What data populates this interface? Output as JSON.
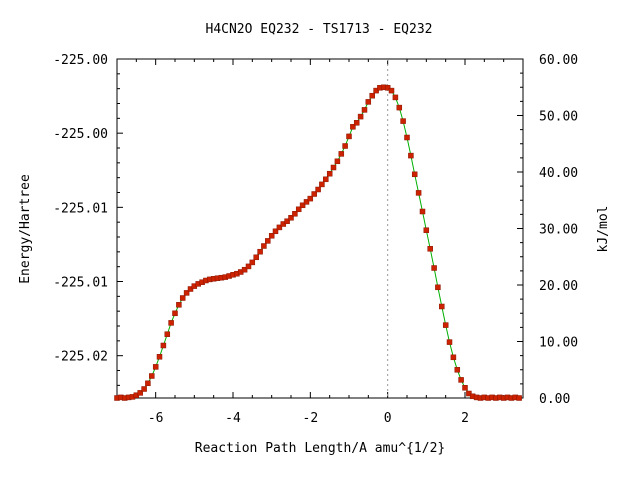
{
  "chart_data": {
    "type": "line",
    "title": "H4CN2O   EQ232 - TS1713 - EQ232",
    "xlabel": "Reaction Path Length/A amu^{1/2}",
    "ylabel": "Energy/Hartree",
    "y2label": "kJ/mol",
    "xlim": [
      -7.0,
      3.5
    ],
    "ylim": [
      0.0,
      60.0
    ],
    "x_ticks": [
      -6,
      -4,
      -2,
      0,
      2
    ],
    "x_tick_labels": [
      "-6",
      "-4",
      "-2",
      "0",
      "2"
    ],
    "y_left_tick_labels": [
      "-225.00",
      "-225.00",
      "-225.01",
      "-225.01",
      "-225.02"
    ],
    "y_right_ticks": [
      0,
      10,
      20,
      30,
      40,
      50,
      60
    ],
    "y_right_tick_labels": [
      "0.00",
      "10.00",
      "20.00",
      "30.00",
      "40.00",
      "50.00",
      "60.00"
    ],
    "reference_x": 0,
    "series": [
      {
        "color": "#00b000",
        "marker_color": "#cc2200",
        "x": [
          -7.0,
          -6.9,
          -6.8,
          -6.7,
          -6.6,
          -6.5,
          -6.4,
          -6.3,
          -6.2,
          -6.1,
          -6.0,
          -5.9,
          -5.8,
          -5.7,
          -5.6,
          -5.5,
          -5.4,
          -5.3,
          -5.2,
          -5.1,
          -5.0,
          -4.9,
          -4.8,
          -4.7,
          -4.6,
          -4.5,
          -4.4,
          -4.3,
          -4.2,
          -4.1,
          -4.0,
          -3.9,
          -3.8,
          -3.7,
          -3.6,
          -3.5,
          -3.4,
          -3.3,
          -3.2,
          -3.1,
          -3.0,
          -2.9,
          -2.8,
          -2.7,
          -2.6,
          -2.5,
          -2.4,
          -2.3,
          -2.2,
          -2.1,
          -2.0,
          -1.9,
          -1.8,
          -1.7,
          -1.6,
          -1.5,
          -1.4,
          -1.3,
          -1.2,
          -1.1,
          -1.0,
          -0.9,
          -0.8,
          -0.7,
          -0.6,
          -0.5,
          -0.4,
          -0.3,
          -0.2,
          -0.1,
          0.0,
          0.1,
          0.2,
          0.3,
          0.4,
          0.5,
          0.6,
          0.7,
          0.8,
          0.9,
          1.0,
          1.1,
          1.2,
          1.3,
          1.4,
          1.5,
          1.6,
          1.7,
          1.8,
          1.9,
          2.0,
          2.1,
          2.2,
          2.3,
          2.4,
          2.5,
          2.6,
          2.7,
          2.8,
          2.9,
          3.0,
          3.1,
          3.2,
          3.3,
          3.4
        ],
        "y": [
          0.0,
          0.1,
          0.0,
          0.1,
          0.2,
          0.5,
          0.9,
          1.6,
          2.6,
          3.9,
          5.5,
          7.3,
          9.3,
          11.3,
          13.3,
          15.0,
          16.5,
          17.7,
          18.6,
          19.3,
          19.8,
          20.2,
          20.5,
          20.8,
          21.0,
          21.1,
          21.2,
          21.3,
          21.4,
          21.6,
          21.8,
          22.0,
          22.3,
          22.7,
          23.3,
          24.0,
          24.9,
          25.9,
          26.9,
          27.8,
          28.7,
          29.5,
          30.2,
          30.8,
          31.3,
          31.9,
          32.6,
          33.4,
          34.1,
          34.7,
          35.3,
          36.1,
          36.9,
          37.8,
          38.7,
          39.7,
          40.8,
          41.9,
          43.2,
          44.6,
          46.3,
          48.0,
          48.7,
          49.8,
          51.0,
          52.4,
          53.5,
          54.4,
          54.9,
          55.0,
          54.9,
          54.4,
          53.2,
          51.4,
          49.0,
          46.1,
          42.9,
          39.6,
          36.3,
          33.0,
          29.7,
          26.4,
          23.0,
          19.6,
          16.2,
          12.9,
          9.9,
          7.2,
          5.0,
          3.2,
          1.8,
          0.8,
          0.3,
          0.1,
          0.0,
          0.1,
          0.0,
          0.1,
          0.0,
          0.1,
          0.0,
          0.1,
          0.0,
          0.1,
          0.0
        ]
      }
    ]
  }
}
